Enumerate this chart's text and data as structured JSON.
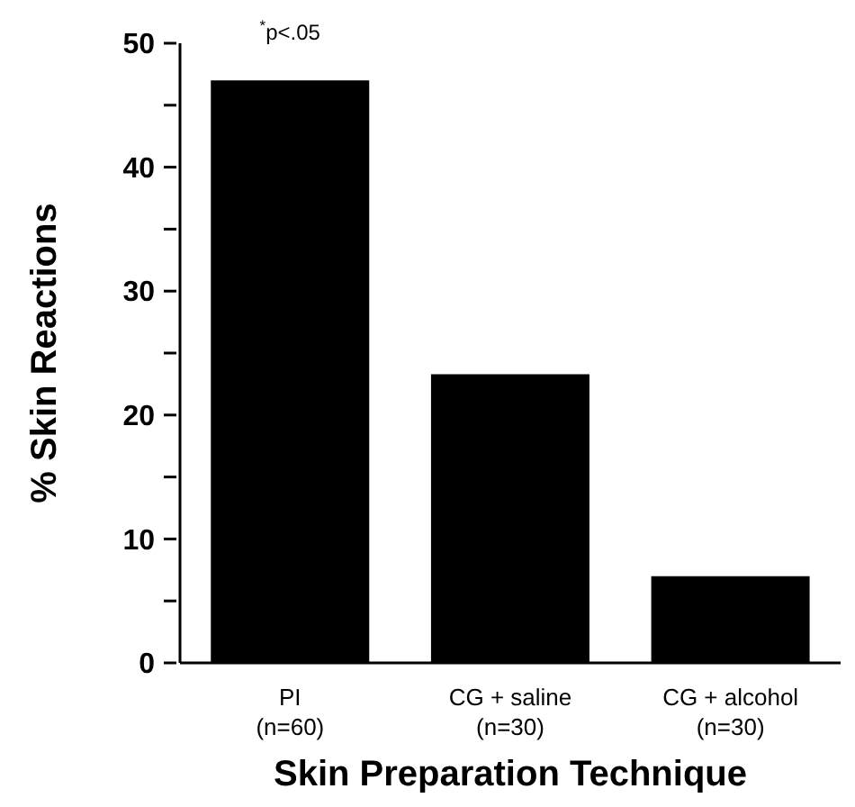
{
  "chart_data": {
    "type": "bar",
    "xlabel": "Skin Preparation Technique",
    "ylabel": "% Skin Reactions",
    "categories": [
      "PI\n(n=60)",
      "CG + saline\n(n=30)",
      "CG + alcohol\n(n=30)"
    ],
    "values": [
      47,
      23.3,
      7
    ],
    "color": "#000000",
    "ylim": [
      0,
      50
    ],
    "yticks": [
      0,
      {
        "value": 5,
        "label": null
      },
      10,
      {
        "value": 15,
        "label": null
      },
      20,
      {
        "value": 25,
        "label": null
      },
      30,
      {
        "value": 35,
        "label": null
      },
      40,
      {
        "value": 45,
        "label": null
      },
      50
    ],
    "annotations": [
      "$^{*}$p<.05"
    ]
  }
}
